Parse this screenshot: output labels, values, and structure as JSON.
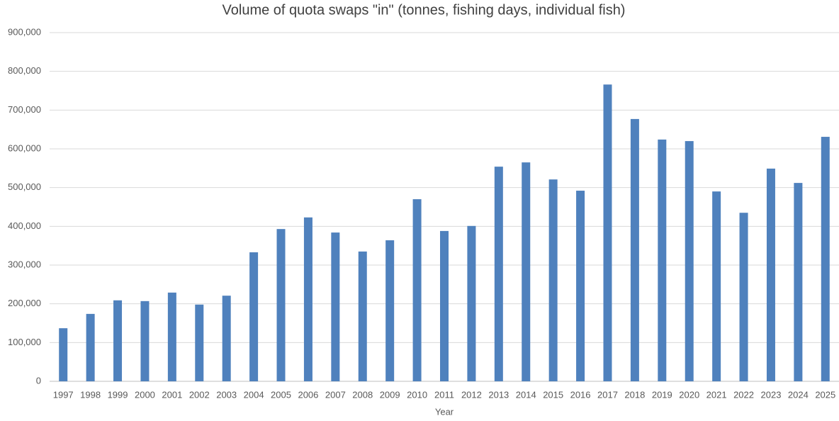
{
  "chart_data": {
    "type": "bar",
    "title": "Volume of quota swaps \"in\" (tonnes, fishing days, individual fish)",
    "x_label": "Year",
    "categories": [
      "1997",
      "1998",
      "1999",
      "2000",
      "2001",
      "2002",
      "2003",
      "2004",
      "2005",
      "2006",
      "2007",
      "2008",
      "2009",
      "2010",
      "2011",
      "2012",
      "2013",
      "2014",
      "2015",
      "2016",
      "2017",
      "2018",
      "2019",
      "2020",
      "2021",
      "2022",
      "2023",
      "2024",
      "2025"
    ],
    "values": [
      137000,
      174000,
      209000,
      207000,
      229000,
      198000,
      221000,
      333000,
      393000,
      423000,
      384000,
      335000,
      364000,
      470000,
      388000,
      401000,
      554000,
      565000,
      521000,
      492000,
      766000,
      677000,
      624000,
      620000,
      490000,
      435000,
      549000,
      512000,
      631000
    ],
    "color": "#4f81bd",
    "ylim": [
      0,
      900000
    ],
    "yticks": [
      0,
      {
        "value": 100000,
        "label": "100,000"
      },
      {
        "value": 200000,
        "label": "200,000"
      },
      {
        "value": 300000,
        "label": "300,000"
      },
      {
        "value": 400000,
        "label": "400,000"
      },
      {
        "value": 500000,
        "label": "500,000"
      },
      {
        "value": 600000,
        "label": "600,000"
      },
      {
        "value": 700000,
        "label": "700,000"
      },
      {
        "value": 800000,
        "label": "800,000"
      },
      {
        "value": 900000,
        "label": "900,000"
      }
    ],
    "grid": true
  }
}
